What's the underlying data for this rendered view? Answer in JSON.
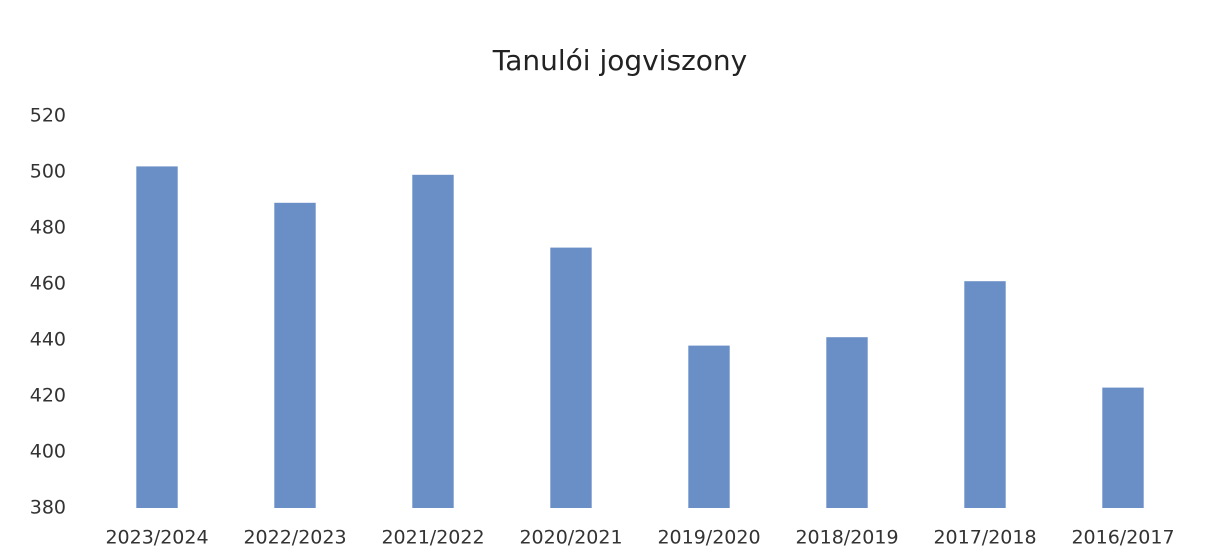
{
  "chart_data": {
    "type": "bar",
    "title": "Tanulói jogviszony",
    "categories": [
      "2023/2024",
      "2022/2023",
      "2021/2022",
      "2020/2021",
      "2019/2020",
      "2018/2019",
      "2017/2018",
      "2016/2017"
    ],
    "values": [
      502,
      489,
      499,
      473,
      438,
      441,
      461,
      423
    ],
    "color": "#6a8fc6",
    "ylim": [
      380,
      520
    ],
    "yticks": [
      380,
      400,
      420,
      440,
      460,
      480,
      500,
      520
    ],
    "grid": false
  }
}
